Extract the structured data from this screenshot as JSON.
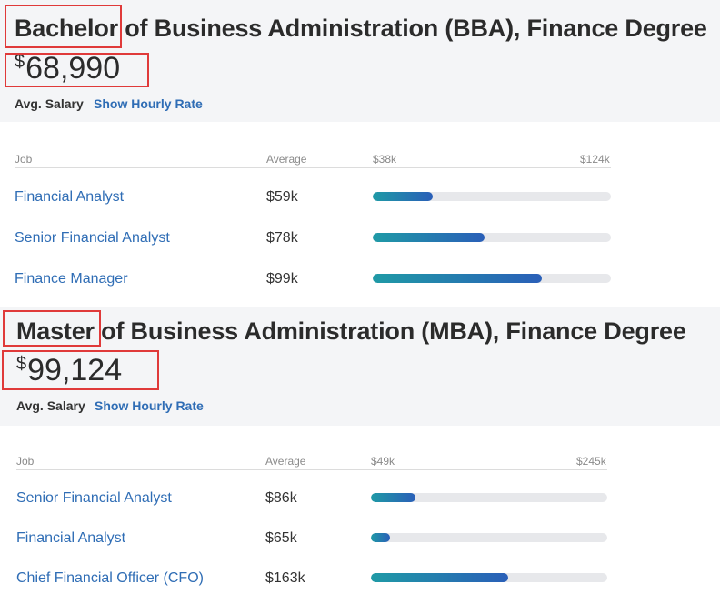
{
  "sections": [
    {
      "degree_level": "Bachelor",
      "degree_rest": " of Business Administration (BBA), Finance Degree",
      "currency": "$",
      "salary": "68,990",
      "avg_label": "Avg. Salary",
      "hourly_link": "Show Hourly Rate",
      "table": {
        "col_job": "Job",
        "col_average": "Average",
        "range_min": "$38k",
        "range_max": "$124k",
        "rows": [
          {
            "job": "Financial Analyst",
            "average": "$59k",
            "fill": 0.25
          },
          {
            "job": "Senior Financial Analyst",
            "average": "$78k",
            "fill": 0.47
          },
          {
            "job": "Finance Manager",
            "average": "$99k",
            "fill": 0.71
          }
        ]
      }
    },
    {
      "degree_level": "Master",
      "degree_rest": " of Business Administration (MBA), Finance Degree",
      "currency": "$",
      "salary": "99,124",
      "avg_label": "Avg. Salary",
      "hourly_link": "Show Hourly Rate",
      "table": {
        "col_job": "Job",
        "col_average": "Average",
        "range_min": "$49k",
        "range_max": "$245k",
        "rows": [
          {
            "job": "Senior Financial Analyst",
            "average": "$86k",
            "fill": 0.19
          },
          {
            "job": "Financial Analyst",
            "average": "$65k",
            "fill": 0.08
          },
          {
            "job": "Chief Financial Officer (CFO)",
            "average": "$163k",
            "fill": 0.58
          }
        ]
      }
    }
  ]
}
